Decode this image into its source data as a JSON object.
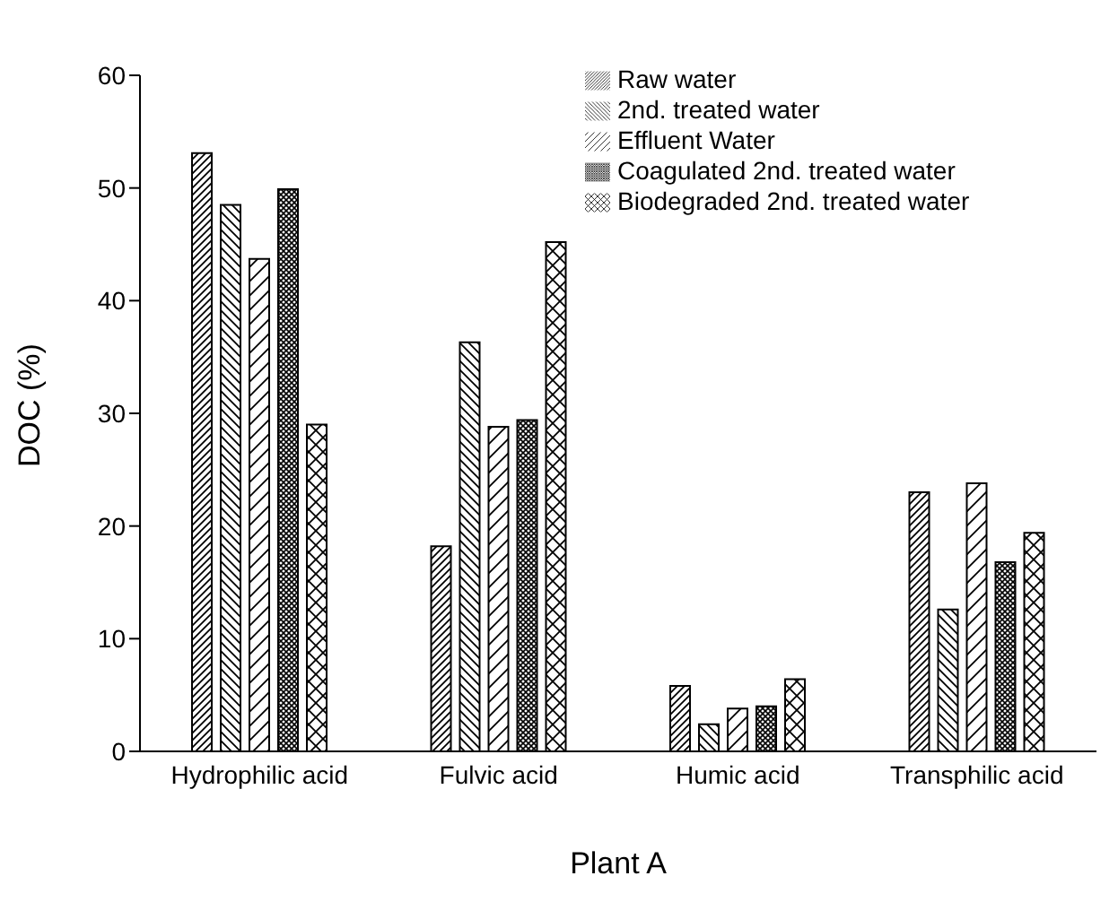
{
  "chart_data": {
    "type": "bar",
    "xlabel": "Plant A",
    "ylabel": "DOC (%)",
    "categories": [
      "Hydrophilic acid",
      "Fulvic acid",
      "Humic acid",
      "Transphilic acid"
    ],
    "ylim": [
      0,
      60
    ],
    "yticks": [
      0,
      10,
      20,
      30,
      40,
      50,
      60
    ],
    "grid": false,
    "legend": "top right",
    "series": [
      {
        "name": "Raw water",
        "color": "#000000",
        "values": [
          53.1,
          18.2,
          5.8,
          23.0
        ]
      },
      {
        "name": "2nd. treated water",
        "color": "#000000",
        "values": [
          48.5,
          36.3,
          2.4,
          12.6
        ]
      },
      {
        "name": "Effluent Water",
        "color": "#000000",
        "values": [
          43.7,
          28.8,
          3.8,
          23.8
        ]
      },
      {
        "name": "Coagulated 2nd. treated water",
        "color": "#000000",
        "values": [
          49.9,
          29.4,
          4.0,
          16.8
        ]
      },
      {
        "name": "Biodegraded 2nd. treated water",
        "color": "#000000",
        "values": [
          29.0,
          45.2,
          6.4,
          19.4
        ]
      }
    ]
  }
}
